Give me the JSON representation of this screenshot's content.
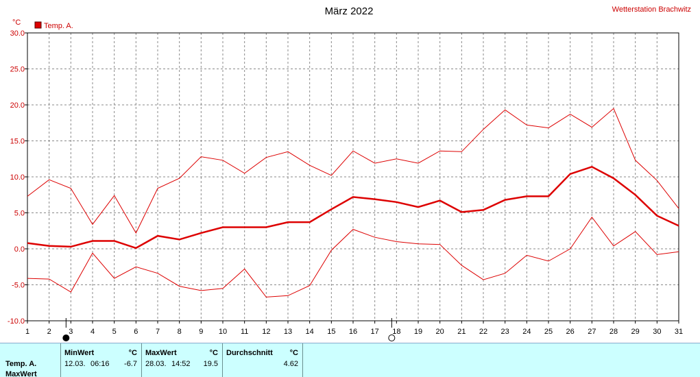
{
  "header": {
    "title": "März 2022",
    "station": "Wetterstation Brachwitz",
    "unit": "°C",
    "legend_label": "Temp. A."
  },
  "colors": {
    "series": "#dd0000",
    "panel": "#ccffff",
    "grid": "#888888"
  },
  "chart_data": {
    "type": "line",
    "title": "März 2022",
    "ylabel": "°C",
    "xlabel": "",
    "x": [
      1,
      2,
      3,
      4,
      5,
      6,
      7,
      8,
      9,
      10,
      11,
      12,
      13,
      14,
      15,
      16,
      17,
      18,
      19,
      20,
      21,
      22,
      23,
      24,
      25,
      26,
      27,
      28,
      29,
      30,
      31
    ],
    "ylim": [
      -10,
      30
    ],
    "yticks": [
      "30.0",
      "25.0",
      "20.0",
      "15.0",
      "10.0",
      "5.0",
      "0.0",
      "-5.0",
      "-10.0"
    ],
    "xticks": [
      "1",
      "2",
      "3",
      "4",
      "5",
      "6",
      "7",
      "8",
      "9",
      "10",
      "11",
      "12",
      "13",
      "14",
      "15",
      "16",
      "17",
      "18",
      "19",
      "20",
      "21",
      "22",
      "23",
      "24",
      "25",
      "26",
      "27",
      "28",
      "29",
      "30",
      "31"
    ],
    "grid": true,
    "legend": "top-left",
    "series": [
      {
        "name": "Temp. A.",
        "role": "max",
        "values": [
          7.3,
          9.6,
          8.4,
          3.4,
          7.4,
          2.2,
          8.4,
          9.8,
          12.8,
          12.3,
          10.5,
          12.7,
          13.5,
          11.6,
          10.2,
          13.6,
          11.9,
          12.5,
          11.9,
          13.6,
          13.5,
          16.6,
          19.3,
          17.2,
          16.8,
          18.7,
          16.9,
          19.5,
          12.3,
          9.5,
          5.6
        ]
      },
      {
        "name": "Temp. A.",
        "role": "avg",
        "values": [
          0.8,
          0.4,
          0.3,
          1.1,
          1.1,
          0.1,
          1.8,
          1.3,
          2.2,
          3.0,
          3.0,
          3.0,
          3.7,
          3.7,
          5.5,
          7.2,
          6.9,
          6.5,
          5.8,
          6.7,
          5.1,
          5.4,
          6.8,
          7.3,
          7.3,
          10.4,
          11.4,
          9.8,
          7.5,
          4.6,
          3.2
        ]
      },
      {
        "name": "Temp. A.",
        "role": "min",
        "values": [
          -4.1,
          -4.2,
          -6.0,
          -0.6,
          -4.1,
          -2.5,
          -3.4,
          -5.2,
          -5.8,
          -5.5,
          -2.8,
          -6.7,
          -6.5,
          -5.1,
          -0.2,
          2.7,
          1.6,
          1.0,
          0.7,
          0.6,
          -2.3,
          -4.3,
          -3.4,
          -0.9,
          -1.7,
          0.0,
          4.4,
          0.4,
          2.4,
          -0.8,
          -0.4
        ]
      }
    ],
    "markers": [
      {
        "day": 3,
        "symbol": "new-moon"
      },
      {
        "day": 18,
        "symbol": "full-moon"
      }
    ]
  },
  "stats": {
    "row_label": "Temp. A.",
    "next_row_label": "MaxWert",
    "min": {
      "header": "MinWert",
      "unit": "°C",
      "date": "12.03.",
      "time": "06:16",
      "value": "-6.7"
    },
    "max": {
      "header": "MaxWert",
      "unit": "°C",
      "date": "28.03.",
      "time": "14:52",
      "value": "19.5"
    },
    "avg": {
      "header": "Durchschnitt",
      "unit": "°C",
      "value": "4.62"
    }
  }
}
